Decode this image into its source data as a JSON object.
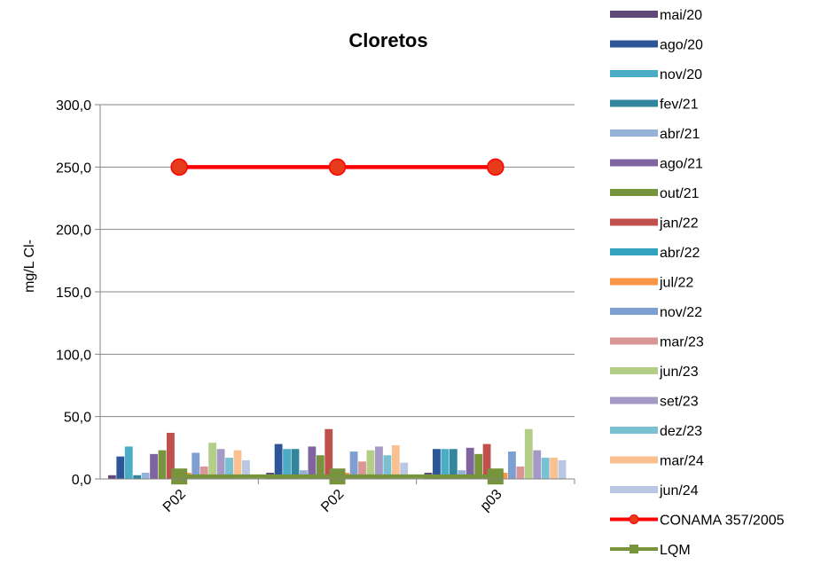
{
  "chart_data": {
    "type": "bar",
    "title": "Cloretos",
    "ylabel": "mg/L Cl-",
    "xlabel": "",
    "ylim": [
      0,
      300
    ],
    "yticks": [
      "0,0",
      "50,0",
      "100,0",
      "150,0",
      "200,0",
      "250,0",
      "300,0"
    ],
    "categories": [
      "P02",
      "P02",
      "p03"
    ],
    "grid": true,
    "legend_position": "right",
    "series": [
      {
        "name": "mai/20",
        "color": "#60497a",
        "values": [
          3,
          5,
          5
        ]
      },
      {
        "name": "ago/20",
        "color": "#2e5597",
        "values": [
          18,
          28,
          24
        ]
      },
      {
        "name": "nov/20",
        "color": "#4bacc6",
        "values": [
          26,
          24,
          24
        ]
      },
      {
        "name": "fev/21",
        "color": "#31859c",
        "values": [
          3,
          24,
          24
        ]
      },
      {
        "name": "abr/21",
        "color": "#95b3d7",
        "values": [
          5,
          7,
          7
        ]
      },
      {
        "name": "ago/21",
        "color": "#8064a2",
        "values": [
          20,
          26,
          25
        ]
      },
      {
        "name": "out/21",
        "color": "#77933c",
        "values": [
          23,
          19,
          20
        ]
      },
      {
        "name": "jan/22",
        "color": "#c0504d",
        "values": [
          37,
          40,
          28
        ]
      },
      {
        "name": "abr/22",
        "color": "#31a3bf",
        "values": [
          5,
          5,
          5
        ]
      },
      {
        "name": "jul/22",
        "color": "#f79646",
        "values": [
          5,
          5,
          5
        ]
      },
      {
        "name": "nov/22",
        "color": "#7f9fd3",
        "values": [
          21,
          22,
          22
        ]
      },
      {
        "name": "mar/23",
        "color": "#d99694",
        "values": [
          10,
          14,
          10
        ]
      },
      {
        "name": "jun/23",
        "color": "#b3ce87",
        "values": [
          29,
          23,
          40
        ]
      },
      {
        "name": "set/23",
        "color": "#a599c6",
        "values": [
          24,
          26,
          23
        ]
      },
      {
        "name": "dez/23",
        "color": "#79c0d3",
        "values": [
          17,
          19,
          17
        ]
      },
      {
        "name": "mar/24",
        "color": "#fac090",
        "values": [
          23,
          27,
          17
        ]
      },
      {
        "name": "jun/24",
        "color": "#b9c7e3",
        "values": [
          15,
          13,
          15
        ]
      }
    ],
    "line_series": [
      {
        "name": "CONAMA 357/2005",
        "color": "#ff0000",
        "marker": "circle",
        "marker_fill": "#e73c1c",
        "values": [
          250,
          250,
          250
        ]
      },
      {
        "name": "LQM",
        "color": "#77933c",
        "marker": "square",
        "marker_fill": "#77933c",
        "values": [
          2,
          2,
          2
        ]
      }
    ]
  }
}
